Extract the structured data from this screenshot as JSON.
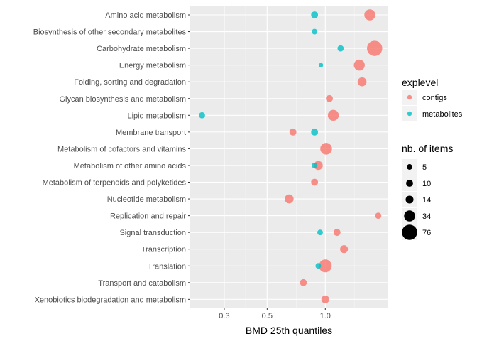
{
  "chart_data": {
    "type": "scatter",
    "xlabel": "BMD 25th quantiles",
    "ylabel": "",
    "x_scale": "log10",
    "xlim": [
      0.2,
      2.1
    ],
    "x_ticks": [
      {
        "value": 0.3,
        "label": "0.3"
      },
      {
        "value": 0.5,
        "label": "0.5"
      },
      {
        "value": 1.0,
        "label": "1.0"
      }
    ],
    "x_minor_ticks": [
      0.387,
      0.707,
      1.414
    ],
    "categories": [
      "Amino acid metabolism",
      "Biosynthesis of other secondary metabolites",
      "Carbohydrate metabolism",
      "Energy metabolism",
      "Folding, sorting and degradation",
      "Glycan biosynthesis and metabolism",
      "Lipid metabolism",
      "Membrane transport",
      "Metabolism of cofactors and vitamins",
      "Metabolism of other amino acids",
      "Metabolism of terpenoids and polyketides",
      "Nucleotide metabolism",
      "Replication and repair",
      "Signal transduction",
      "Transcription",
      "Translation",
      "Transport and catabolism",
      "Xenobiotics biodegradation and metabolism"
    ],
    "series": [
      {
        "name": "contigs",
        "color": "#F8766D",
        "points": [
          {
            "category": "Amino acid metabolism",
            "x": 1.7,
            "size": 34
          },
          {
            "category": "Carbohydrate metabolism",
            "x": 1.8,
            "size": 76
          },
          {
            "category": "Energy metabolism",
            "x": 1.5,
            "size": 34
          },
          {
            "category": "Folding, sorting and degradation",
            "x": 1.55,
            "size": 20
          },
          {
            "category": "Glycan biosynthesis and metabolism",
            "x": 1.05,
            "size": 10
          },
          {
            "category": "Lipid metabolism",
            "x": 1.1,
            "size": 34
          },
          {
            "category": "Membrane transport",
            "x": 0.68,
            "size": 10
          },
          {
            "category": "Metabolism of cofactors and vitamins",
            "x": 1.01,
            "size": 40
          },
          {
            "category": "Metabolism of other amino acids",
            "x": 0.92,
            "size": 20
          },
          {
            "category": "Metabolism of terpenoids and polyketides",
            "x": 0.88,
            "size": 10
          },
          {
            "category": "Nucleotide metabolism",
            "x": 0.65,
            "size": 20
          },
          {
            "category": "Replication and repair",
            "x": 1.88,
            "size": 7
          },
          {
            "category": "Signal transduction",
            "x": 1.15,
            "size": 10
          },
          {
            "category": "Transcription",
            "x": 1.25,
            "size": 14
          },
          {
            "category": "Translation",
            "x": 1.0,
            "size": 50
          },
          {
            "category": "Transport and catabolism",
            "x": 0.77,
            "size": 10
          },
          {
            "category": "Xenobiotics biodegradation and metabolism",
            "x": 1.0,
            "size": 14
          }
        ]
      },
      {
        "name": "metabolites",
        "color": "#00BFC4",
        "points": [
          {
            "category": "Amino acid metabolism",
            "x": 0.88,
            "size": 10
          },
          {
            "category": "Biosynthesis of other secondary metabolites",
            "x": 0.88,
            "size": 5
          },
          {
            "category": "Carbohydrate metabolism",
            "x": 1.2,
            "size": 7
          },
          {
            "category": "Energy metabolism",
            "x": 0.95,
            "size": 2
          },
          {
            "category": "Lipid metabolism",
            "x": 0.23,
            "size": 7
          },
          {
            "category": "Membrane transport",
            "x": 0.88,
            "size": 10
          },
          {
            "category": "Metabolism of other amino acids",
            "x": 0.88,
            "size": 5
          },
          {
            "category": "Signal transduction",
            "x": 0.94,
            "size": 5
          },
          {
            "category": "Translation",
            "x": 0.92,
            "size": 5
          }
        ]
      }
    ],
    "legend_color": {
      "title": "explevel",
      "items": [
        {
          "label": "contigs",
          "color": "#F8766D"
        },
        {
          "label": "metabolites",
          "color": "#00BFC4"
        }
      ]
    },
    "legend_size": {
      "title": "nb. of items",
      "items": [
        {
          "label": "5",
          "size": 5
        },
        {
          "label": "10",
          "size": 10
        },
        {
          "label": "14",
          "size": 14
        },
        {
          "label": "34",
          "size": 34
        },
        {
          "label": "76",
          "size": 76
        }
      ]
    },
    "style": {
      "panel_background": "#EBEBEB",
      "grid_major": "#FFFFFF",
      "point_alpha": 0.8
    }
  }
}
